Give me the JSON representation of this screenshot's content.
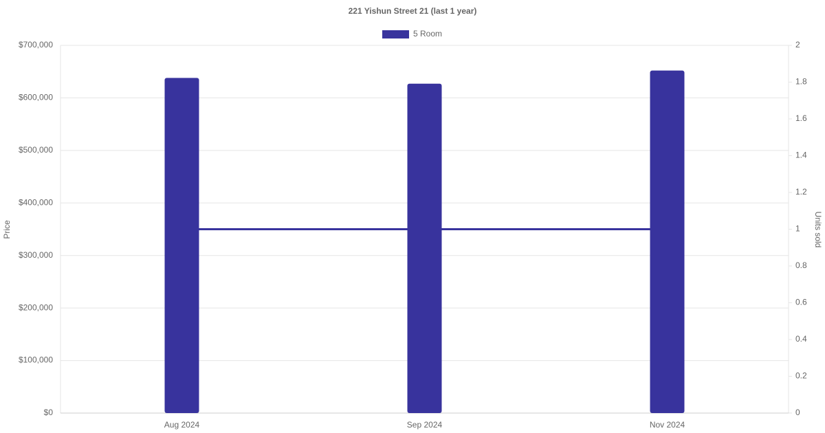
{
  "chart_data": {
    "type": "bar_line",
    "title": "221 Yishun Street 21 (last 1 year)",
    "ylabel": "Price",
    "y2label": "Units sold",
    "categories": [
      "Aug 2024",
      "Sep 2024",
      "Nov 2024"
    ],
    "series": [
      {
        "name": "5 Room",
        "color": "#38339d",
        "type": "bar",
        "values": [
          638000,
          627000,
          652000
        ]
      },
      {
        "color": "#38339d",
        "type": "line",
        "axis": "y2",
        "values": [
          1,
          1,
          1
        ]
      }
    ],
    "ylim": [
      0,
      700000
    ],
    "yticks": [
      {
        "value": 0,
        "label": "$0"
      },
      {
        "value": 100000,
        "label": "$100,000"
      },
      {
        "value": 200000,
        "label": "$200,000"
      },
      {
        "value": 300000,
        "label": "$300,000"
      },
      {
        "value": 400000,
        "label": "$400,000"
      },
      {
        "value": 500000,
        "label": "$500,000"
      },
      {
        "value": 600000,
        "label": "$600,000"
      },
      {
        "value": 700000,
        "label": "$700,000"
      }
    ],
    "y2lim": [
      0,
      2
    ],
    "y2ticks": [
      0,
      0.2,
      0.4,
      0.6,
      0.8,
      1,
      1.2,
      1.4,
      1.6,
      1.8,
      2
    ],
    "grid": true,
    "legend": "top"
  }
}
